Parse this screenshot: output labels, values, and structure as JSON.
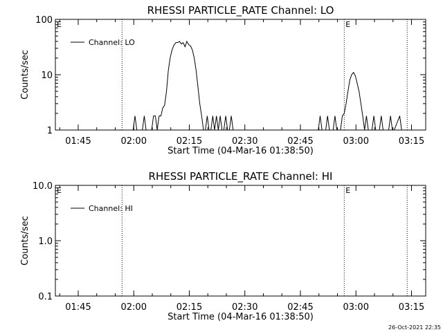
{
  "footer": {
    "timestamp": "26-Oct-2021 22:35"
  },
  "chart_data": [
    {
      "type": "line",
      "title": "RHESSI PARTICLE_RATE Channel: LO",
      "xlabel": "Start Time (04-Mar-16 01:38:50)",
      "ylabel": "Counts/sec",
      "xlim": [
        "01:38:50",
        "03:18:50"
      ],
      "ylim": [
        1,
        100
      ],
      "yscale": "log",
      "xticks": [
        "01:45",
        "02:00",
        "02:15",
        "02:30",
        "02:45",
        "03:00",
        "03:15"
      ],
      "yticks": [
        "1",
        "10",
        "100"
      ],
      "legend": {
        "entries": [
          "Channel: LO"
        ],
        "position": "top-left"
      },
      "annotations": [
        {
          "time": "01:38:50",
          "label": "E",
          "line": false
        },
        {
          "time": "01:56:50",
          "label": "",
          "line": true
        },
        {
          "time": "02:56:50",
          "label": "E",
          "line": true
        },
        {
          "time": "03:13:50",
          "label": "",
          "line": true
        }
      ],
      "series": [
        {
          "name": "Channel: LO",
          "x": [
            "01:58:50",
            "01:59:50",
            "02:00:20",
            "02:00:50",
            "02:01:50",
            "02:02:20",
            "02:02:50",
            "02:03:20",
            "02:03:50",
            "02:04:50",
            "02:05:20",
            "02:05:50",
            "02:06:20",
            "02:06:50",
            "02:07:20",
            "02:07:50",
            "02:08:20",
            "02:08:50",
            "02:09:20",
            "02:09:50",
            "02:10:20",
            "02:10:50",
            "02:11:20",
            "02:11:50",
            "02:12:20",
            "02:12:50",
            "02:13:20",
            "02:13:50",
            "02:14:20",
            "02:14:50",
            "02:15:20",
            "02:15:50",
            "02:16:20",
            "02:16:50",
            "02:17:20",
            "02:17:50",
            "02:18:20",
            "02:18:50",
            "02:19:20",
            "02:19:50",
            "02:20:20",
            "02:20:50",
            "02:21:20",
            "02:21:50",
            "02:22:20",
            "02:22:50",
            "02:23:20",
            "02:23:50",
            "02:24:20",
            "02:24:50",
            "02:25:20",
            "02:25:50",
            "02:26:20",
            "02:26:50",
            "02:27:20",
            "02:27:50",
            "02:49:50",
            "02:50:20",
            "02:50:50",
            "02:51:50",
            "02:52:20",
            "02:52:50",
            "02:53:50",
            "02:54:20",
            "02:54:50",
            "02:55:50",
            "02:56:20",
            "02:56:50",
            "02:57:20",
            "02:57:50",
            "02:58:20",
            "02:58:50",
            "02:59:20",
            "02:59:50",
            "03:00:20",
            "03:00:50",
            "03:01:20",
            "03:01:50",
            "03:02:20",
            "03:02:50",
            "03:03:20",
            "03:04:20",
            "03:04:50",
            "03:05:20",
            "03:06:20",
            "03:06:50",
            "03:07:20",
            "03:08:50",
            "03:09:20",
            "03:09:50",
            "03:10:20",
            "03:11:50",
            "03:12:20",
            "03:12:50"
          ],
          "y": [
            1,
            1,
            1.8,
            1,
            1,
            1,
            1.8,
            1,
            1,
            1,
            1.8,
            1.8,
            1,
            1.8,
            1.8,
            2.5,
            2.8,
            5,
            12,
            20,
            28,
            34,
            38,
            38,
            40,
            36,
            38,
            32,
            40,
            35,
            33,
            28,
            20,
            12,
            6,
            3,
            1.8,
            1,
            1,
            1.8,
            1,
            1,
            1.8,
            1,
            1.8,
            1,
            1.8,
            1,
            1,
            1.8,
            1,
            1,
            1.8,
            1,
            1,
            1,
            1,
            1.8,
            1,
            1,
            1.8,
            1,
            1,
            1.8,
            1,
            1,
            1.8,
            2,
            3,
            5,
            8,
            10,
            11,
            9.5,
            7,
            5,
            3,
            1.8,
            1,
            1.8,
            1,
            1,
            1.8,
            1,
            1,
            1.8,
            1,
            1,
            1.8,
            1,
            1,
            1.8,
            1,
            1
          ]
        }
      ]
    },
    {
      "type": "line",
      "title": "RHESSI PARTICLE_RATE Channel: HI",
      "xlabel": "Start Time (04-Mar-16 01:38:50)",
      "ylabel": "Counts/sec",
      "xlim": [
        "01:38:50",
        "03:18:50"
      ],
      "ylim": [
        0.1,
        10
      ],
      "yscale": "log",
      "xticks": [
        "01:45",
        "02:00",
        "02:15",
        "02:30",
        "02:45",
        "03:00",
        "03:15"
      ],
      "yticks": [
        "0.1",
        "1.0",
        "10.0"
      ],
      "legend": {
        "entries": [
          "Channel: HI"
        ],
        "position": "top-left"
      },
      "annotations": [
        {
          "time": "01:38:50",
          "label": "E",
          "line": false
        },
        {
          "time": "01:56:50",
          "label": "",
          "line": true
        },
        {
          "time": "02:56:50",
          "label": "E",
          "line": true
        },
        {
          "time": "03:13:50",
          "label": "",
          "line": true
        }
      ],
      "series": [
        {
          "name": "Channel: HI",
          "x": [],
          "y": []
        }
      ]
    }
  ]
}
